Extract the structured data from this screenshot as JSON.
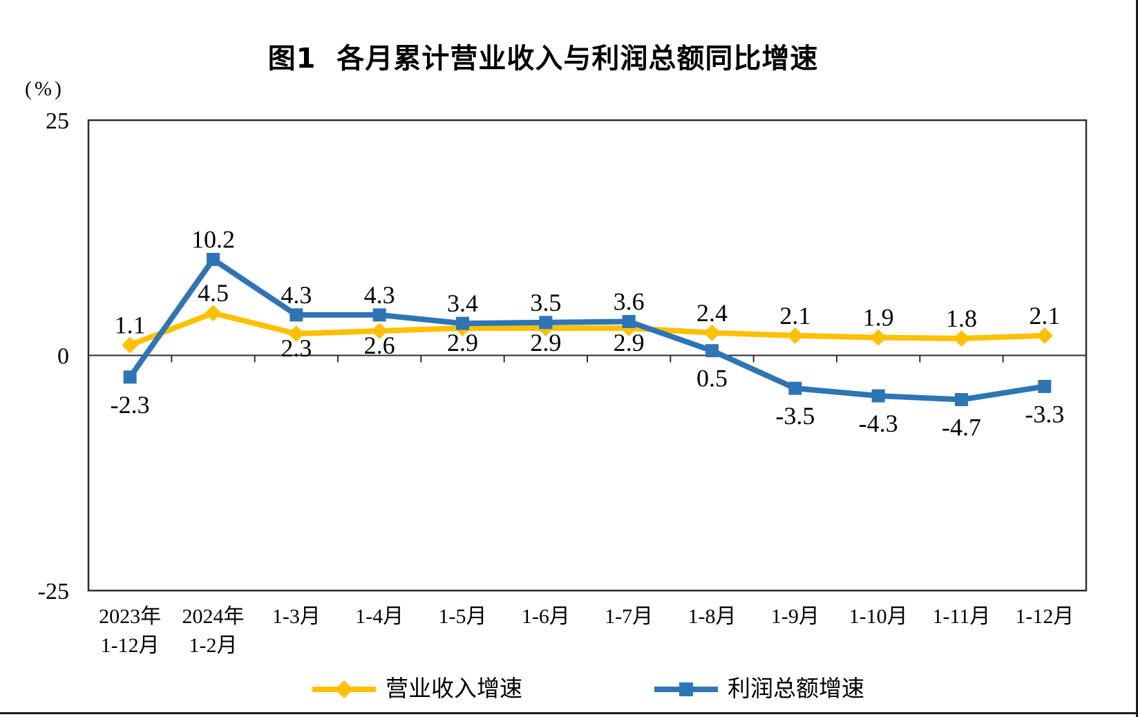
{
  "chart_data": {
    "type": "line",
    "title": "图1  各月累计营业收入与利润总额同比增速",
    "y_unit": "(%)",
    "y_ticks": [
      25,
      0,
      -25
    ],
    "ylim": [
      -25,
      25
    ],
    "grid": false,
    "legend_position": "bottom",
    "categories": [
      "2023年1-12月",
      "2024年1-2月",
      "1-3月",
      "1-4月",
      "1-5月",
      "1-6月",
      "1-7月",
      "1-8月",
      "1-9月",
      "1-10月",
      "1-11月",
      "1-12月"
    ],
    "category_labels": [
      [
        "2023年",
        "1-12月"
      ],
      [
        "2024年",
        "1-2月"
      ],
      [
        "1-3月"
      ],
      [
        "1-4月"
      ],
      [
        "1-5月"
      ],
      [
        "1-6月"
      ],
      [
        "1-7月"
      ],
      [
        "1-8月"
      ],
      [
        "1-9月"
      ],
      [
        "1-10月"
      ],
      [
        "1-11月"
      ],
      [
        "1-12月"
      ]
    ],
    "series": [
      {
        "name": "营业收入增速",
        "color": "#FFC000",
        "marker": "diamond",
        "values": [
          1.1,
          4.5,
          2.3,
          2.6,
          2.9,
          2.9,
          2.9,
          2.4,
          2.1,
          1.9,
          1.8,
          2.1
        ],
        "label_positions": [
          "above",
          "above",
          "below",
          "below",
          "below",
          "below",
          "below",
          "above",
          "above",
          "above",
          "above",
          "above"
        ]
      },
      {
        "name": "利润总额增速",
        "color": "#2E75B6",
        "marker": "square",
        "values": [
          -2.3,
          10.2,
          4.3,
          4.3,
          3.4,
          3.5,
          3.6,
          0.5,
          -3.5,
          -4.3,
          -4.7,
          -3.3
        ],
        "label_positions": [
          "below",
          "above",
          "above",
          "above",
          "above",
          "above",
          "above",
          "below",
          "below",
          "below",
          "below",
          "below"
        ]
      }
    ],
    "axis_color": "#2d2d2d",
    "text_color": "#000000"
  }
}
